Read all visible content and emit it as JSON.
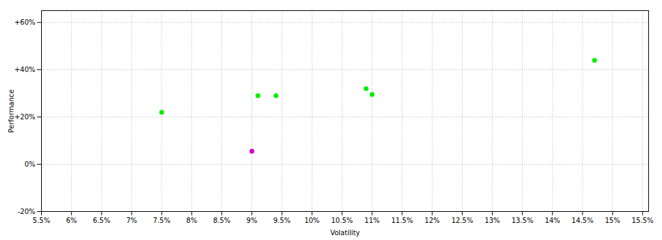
{
  "chart_data": {
    "type": "scatter",
    "xlabel": "Volatility",
    "ylabel": "Performance",
    "xlim": [
      0.055,
      0.156
    ],
    "ylim": [
      -0.2,
      0.65
    ],
    "xticks": [
      {
        "value": 0.055,
        "label": "5.5%"
      },
      {
        "value": 0.06,
        "label": "6%"
      },
      {
        "value": 0.065,
        "label": "6.5%"
      },
      {
        "value": 0.07,
        "label": "7%"
      },
      {
        "value": 0.075,
        "label": "7.5%"
      },
      {
        "value": 0.08,
        "label": "8%"
      },
      {
        "value": 0.085,
        "label": "8.5%"
      },
      {
        "value": 0.09,
        "label": "9%"
      },
      {
        "value": 0.095,
        "label": "9.5%"
      },
      {
        "value": 0.1,
        "label": "10%"
      },
      {
        "value": 0.105,
        "label": "10.5%"
      },
      {
        "value": 0.11,
        "label": "11%"
      },
      {
        "value": 0.115,
        "label": "11.5%"
      },
      {
        "value": 0.12,
        "label": "12%"
      },
      {
        "value": 0.125,
        "label": "12.5%"
      },
      {
        "value": 0.13,
        "label": "13%"
      },
      {
        "value": 0.135,
        "label": "13.5%"
      },
      {
        "value": 0.14,
        "label": "14%"
      },
      {
        "value": 0.145,
        "label": "14.5%"
      },
      {
        "value": 0.15,
        "label": "15%"
      },
      {
        "value": 0.155,
        "label": "15.5%"
      }
    ],
    "yticks": [
      {
        "value": -0.2,
        "label": "-20%"
      },
      {
        "value": 0.0,
        "label": "0%"
      },
      {
        "value": 0.2,
        "label": "+20%"
      },
      {
        "value": 0.4,
        "label": "+40%"
      },
      {
        "value": 0.6,
        "label": "+60%"
      }
    ],
    "grid": true,
    "series": [
      {
        "color": "#00ee00",
        "x": [
          0.075,
          0.091,
          0.094,
          0.109,
          0.11,
          0.147
        ],
        "values": [
          0.22,
          0.29,
          0.29,
          0.32,
          0.295,
          0.44
        ]
      },
      {
        "color": "#cc00cc",
        "x": [
          0.09
        ],
        "values": [
          0.055
        ]
      }
    ]
  }
}
